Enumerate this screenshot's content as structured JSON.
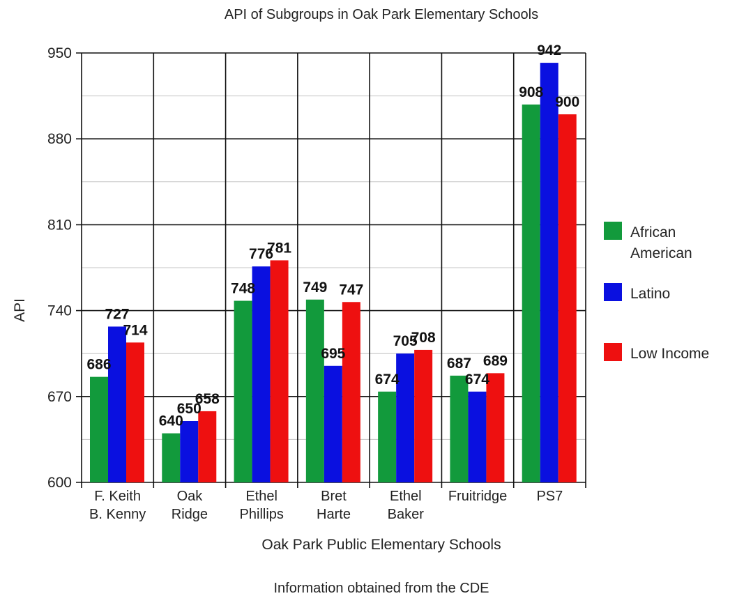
{
  "chart_data": {
    "type": "bar",
    "title": "API of Subgroups in Oak Park Elementary Schools",
    "xlabel": "Oak Park Public Elementary Schools",
    "ylabel": "API",
    "footnote": "Information obtained from the CDE",
    "ylim": [
      600,
      950
    ],
    "yticks": [
      "600",
      "670",
      "740",
      "810",
      "880",
      "950"
    ],
    "categories": [
      [
        "F. Keith",
        "B. Kenny"
      ],
      [
        "Oak",
        "Ridge"
      ],
      [
        "Ethel",
        "Phillips"
      ],
      [
        "Bret",
        "Harte"
      ],
      [
        "Ethel",
        "Baker"
      ],
      [
        "Fruitridge"
      ],
      [
        "PS7"
      ]
    ],
    "series": [
      {
        "name": "African American",
        "legend_lines": [
          "African",
          "American"
        ],
        "color": "#129a3c",
        "values": [
          686,
          640,
          748,
          749,
          674,
          687,
          908
        ]
      },
      {
        "name": "Latino",
        "legend_lines": [
          "Latino"
        ],
        "color": "#0a10e0",
        "values": [
          727,
          650,
          776,
          695,
          705,
          674,
          942
        ]
      },
      {
        "name": "Low Income",
        "legend_lines": [
          "Low Income"
        ],
        "color": "#ee1010",
        "values": [
          714,
          658,
          781,
          747,
          708,
          689,
          900
        ]
      }
    ],
    "grid": true,
    "legend_position": "right"
  }
}
